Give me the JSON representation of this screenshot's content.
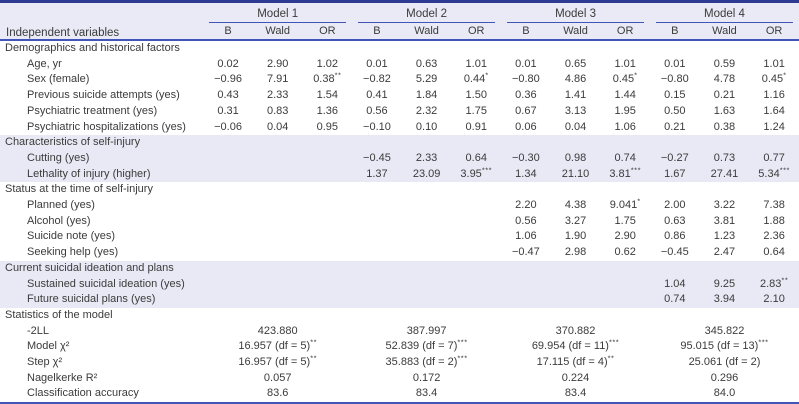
{
  "table": {
    "corner_label": "Independent variables",
    "models": [
      "Model 1",
      "Model 2",
      "Model 3",
      "Model 4"
    ],
    "sub_headers": [
      "B",
      "Wald",
      "OR"
    ],
    "colors": {
      "rule_blue": "#4055b8",
      "top_border_blue": "#2e3b92",
      "header_bg": "#e9eaf5",
      "highlight_band_bg": "#e9e9f5",
      "text": "#3b3b3b"
    },
    "sections": [
      {
        "title": "Demographics and historical factors",
        "highlight": false,
        "rows": [
          {
            "label": "Age, yr",
            "cells": [
              [
                "0.02",
                "2.90",
                "1.02"
              ],
              [
                "0.01",
                "0.63",
                "1.01"
              ],
              [
                "0.01",
                "0.65",
                "1.01"
              ],
              [
                "0.01",
                "0.59",
                "1.01"
              ]
            ]
          },
          {
            "label": "Sex (female)",
            "cells": [
              [
                "−0.96",
                "7.91",
                {
                  "v": "0.38",
                  "s": "**"
                }
              ],
              [
                "−0.82",
                "5.29",
                {
                  "v": "0.44",
                  "s": "*"
                }
              ],
              [
                "−0.80",
                "4.86",
                {
                  "v": "0.45",
                  "s": "*"
                }
              ],
              [
                "−0.80",
                "4.78",
                {
                  "v": "0.45",
                  "s": "*"
                }
              ]
            ]
          },
          {
            "label": "Previous suicide attempts (yes)",
            "cells": [
              [
                "0.43",
                "2.33",
                "1.54"
              ],
              [
                "0.41",
                "1.84",
                "1.50"
              ],
              [
                "0.36",
                "1.41",
                "1.44"
              ],
              [
                "0.15",
                "0.21",
                "1.16"
              ]
            ]
          },
          {
            "label": "Psychiatric treatment (yes)",
            "cells": [
              [
                "0.31",
                "0.83",
                "1.36"
              ],
              [
                "0.56",
                "2.32",
                "1.75"
              ],
              [
                "0.67",
                "3.13",
                "1.95"
              ],
              [
                "0.50",
                "1.63",
                "1.64"
              ]
            ]
          },
          {
            "label": "Psychiatric hospitalizations (yes)",
            "cells": [
              [
                "−0.06",
                "0.04",
                "0.95"
              ],
              [
                "−0.10",
                "0.10",
                "0.91"
              ],
              [
                "0.06",
                "0.04",
                "1.06"
              ],
              [
                "0.21",
                "0.38",
                "1.24"
              ]
            ]
          }
        ]
      },
      {
        "title": "Characteristics of self-injury",
        "highlight": true,
        "rows": [
          {
            "label": "Cutting (yes)",
            "cells": [
              null,
              [
                "−0.45",
                "2.33",
                "0.64"
              ],
              [
                "−0.30",
                "0.98",
                "0.74"
              ],
              [
                "−0.27",
                "0.73",
                "0.77"
              ]
            ]
          },
          {
            "label": "Lethality of injury (higher)",
            "cells": [
              null,
              [
                "1.37",
                "23.09",
                {
                  "v": "3.95",
                  "s": "***"
                }
              ],
              [
                "1.34",
                "21.10",
                {
                  "v": "3.81",
                  "s": "***"
                }
              ],
              [
                "1.67",
                "27.41",
                {
                  "v": "5.34",
                  "s": "***"
                }
              ]
            ]
          }
        ]
      },
      {
        "title": "Status at the time of self-injury",
        "highlight": false,
        "rows": [
          {
            "label": "Planned (yes)",
            "cells": [
              null,
              null,
              [
                "2.20",
                "4.38",
                {
                  "v": "9.041",
                  "s": "*"
                }
              ],
              [
                "2.00",
                "3.22",
                "7.38"
              ]
            ]
          },
          {
            "label": "Alcohol (yes)",
            "cells": [
              null,
              null,
              [
                "0.56",
                "3.27",
                "1.75"
              ],
              [
                "0.63",
                "3.81",
                "1.88"
              ]
            ]
          },
          {
            "label": "Suicide note (yes)",
            "cells": [
              null,
              null,
              [
                "1.06",
                "1.90",
                "2.90"
              ],
              [
                "0.86",
                "1.23",
                "2.36"
              ]
            ]
          },
          {
            "label": "Seeking help (yes)",
            "cells": [
              null,
              null,
              [
                "−0.47",
                "2.98",
                "0.62"
              ],
              [
                "−0.45",
                "2.47",
                "0.64"
              ]
            ]
          }
        ]
      },
      {
        "title": "Current suicidal ideation and plans",
        "highlight": true,
        "rows": [
          {
            "label": "Sustained suicidal ideation (yes)",
            "cells": [
              null,
              null,
              null,
              [
                "1.04",
                "9.25",
                {
                  "v": "2.83",
                  "s": "**"
                }
              ]
            ]
          },
          {
            "label": "Future suicidal plans (yes)",
            "cells": [
              null,
              null,
              null,
              [
                "0.74",
                "3.94",
                "2.10"
              ]
            ]
          }
        ]
      },
      {
        "title": "Statistics of the model",
        "highlight": false,
        "rows": [
          {
            "label": "-2LL",
            "values": [
              "423.880",
              "387.997",
              "370.882",
              "345.822"
            ]
          },
          {
            "label": "Model χ²",
            "values": [
              {
                "v": "16.957 (df = 5)",
                "s": "**"
              },
              {
                "v": "52.839 (df = 7)",
                "s": "***"
              },
              {
                "v": "69.954 (df = 11)",
                "s": "***"
              },
              {
                "v": "95.015 (df = 13)",
                "s": "***"
              }
            ]
          },
          {
            "label": "Step χ²",
            "values": [
              {
                "v": "16.957 (df = 5)",
                "s": "**"
              },
              {
                "v": "35.883 (df = 2)",
                "s": "***"
              },
              {
                "v": "17.115 (df = 4)",
                "s": "**"
              },
              "25.061 (df = 2)"
            ]
          },
          {
            "label": "Nagelkerke R²",
            "values": [
              "0.057",
              "0.172",
              "0.224",
              "0.296"
            ]
          },
          {
            "label": "Classification accuracy",
            "values": [
              "83.6",
              "83.4",
              "83.4",
              "84.0"
            ]
          }
        ]
      }
    ]
  }
}
